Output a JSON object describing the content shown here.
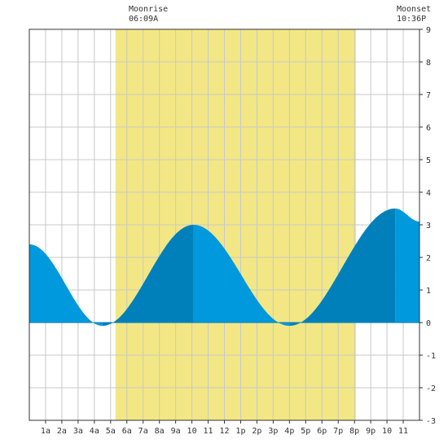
{
  "chart_data": {
    "type": "area",
    "title": "",
    "xlabel": "",
    "ylabel": "",
    "xlim": [
      0,
      24
    ],
    "ylim": [
      -3,
      9
    ],
    "yticks": [
      -3,
      -2,
      -1,
      0,
      1,
      2,
      3,
      4,
      5,
      6,
      7,
      8,
      9
    ],
    "x_tick_labels": [
      "1a",
      "2a",
      "3a",
      "4a",
      "5a",
      "6a",
      "7a",
      "8a",
      "9a",
      "10",
      "11",
      "12",
      "1p",
      "2p",
      "3p",
      "4p",
      "5p",
      "6p",
      "7p",
      "8p",
      "9p",
      "10",
      "11"
    ],
    "grid": true,
    "highlight_band": {
      "start_hour": 5.3,
      "end_hour": 20.1,
      "color": "#f2e784"
    },
    "events": [
      {
        "name": "Moonrise",
        "time": "06:09A",
        "hour": 6.15
      },
      {
        "name": "Moonset",
        "time": "10:36P",
        "hour": 22.6
      }
    ],
    "tide_extremes": [
      {
        "hour": 0.0,
        "value": 2.4,
        "kind": "start"
      },
      {
        "hour": 4.5,
        "value": -0.1,
        "kind": "low"
      },
      {
        "hour": 10.1,
        "value": 3.0,
        "kind": "high"
      },
      {
        "hour": 16.0,
        "value": -0.1,
        "kind": "low"
      },
      {
        "hour": 22.5,
        "value": 3.5,
        "kind": "high"
      },
      {
        "hour": 24.0,
        "value": 3.1,
        "kind": "end"
      }
    ],
    "series": [
      {
        "name": "",
        "color": "#0099dd",
        "dark_color": "#0080bb"
      }
    ]
  }
}
